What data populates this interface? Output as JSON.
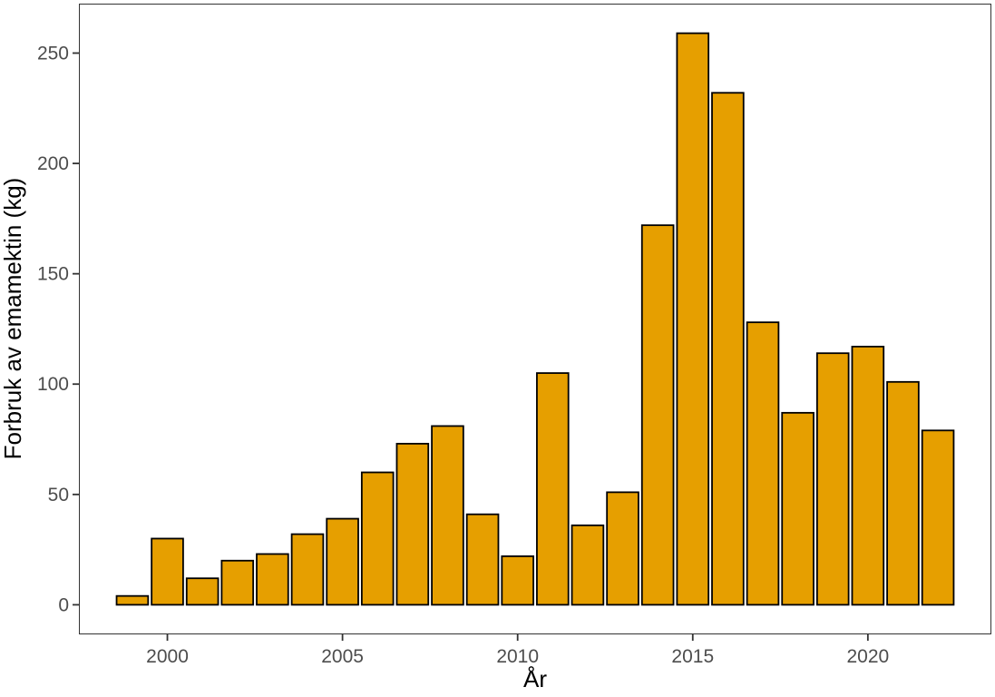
{
  "chart_data": {
    "type": "bar",
    "title": "",
    "xlabel": "År",
    "ylabel": "Forbruk av emamektin (kg)",
    "x": [
      1999,
      2000,
      2001,
      2002,
      2003,
      2004,
      2005,
      2006,
      2007,
      2008,
      2009,
      2010,
      2011,
      2012,
      2013,
      2014,
      2015,
      2016,
      2017,
      2018,
      2019,
      2020,
      2021,
      2022
    ],
    "values": [
      4,
      30,
      12,
      20,
      23,
      32,
      39,
      60,
      73,
      81,
      41,
      22,
      105,
      36,
      51,
      172,
      259,
      232,
      128,
      87,
      114,
      117,
      101,
      79
    ],
    "xlim": [
      1997.5,
      2023.5
    ],
    "ylim": [
      -13,
      272
    ],
    "x_ticks": [
      2000,
      2005,
      2010,
      2015,
      2020
    ],
    "y_ticks": [
      0,
      50,
      100,
      150,
      200,
      250
    ],
    "x_tick_labels": [
      "2000",
      "2005",
      "2010",
      "2015",
      "2020"
    ],
    "y_tick_labels": [
      "0",
      "50",
      "100",
      "150",
      "200",
      "250"
    ],
    "grid": false,
    "legend": "none",
    "colors": {
      "bar_fill": "#E69F00",
      "bar_stroke": "#000000",
      "panel_border": "#333333"
    }
  }
}
